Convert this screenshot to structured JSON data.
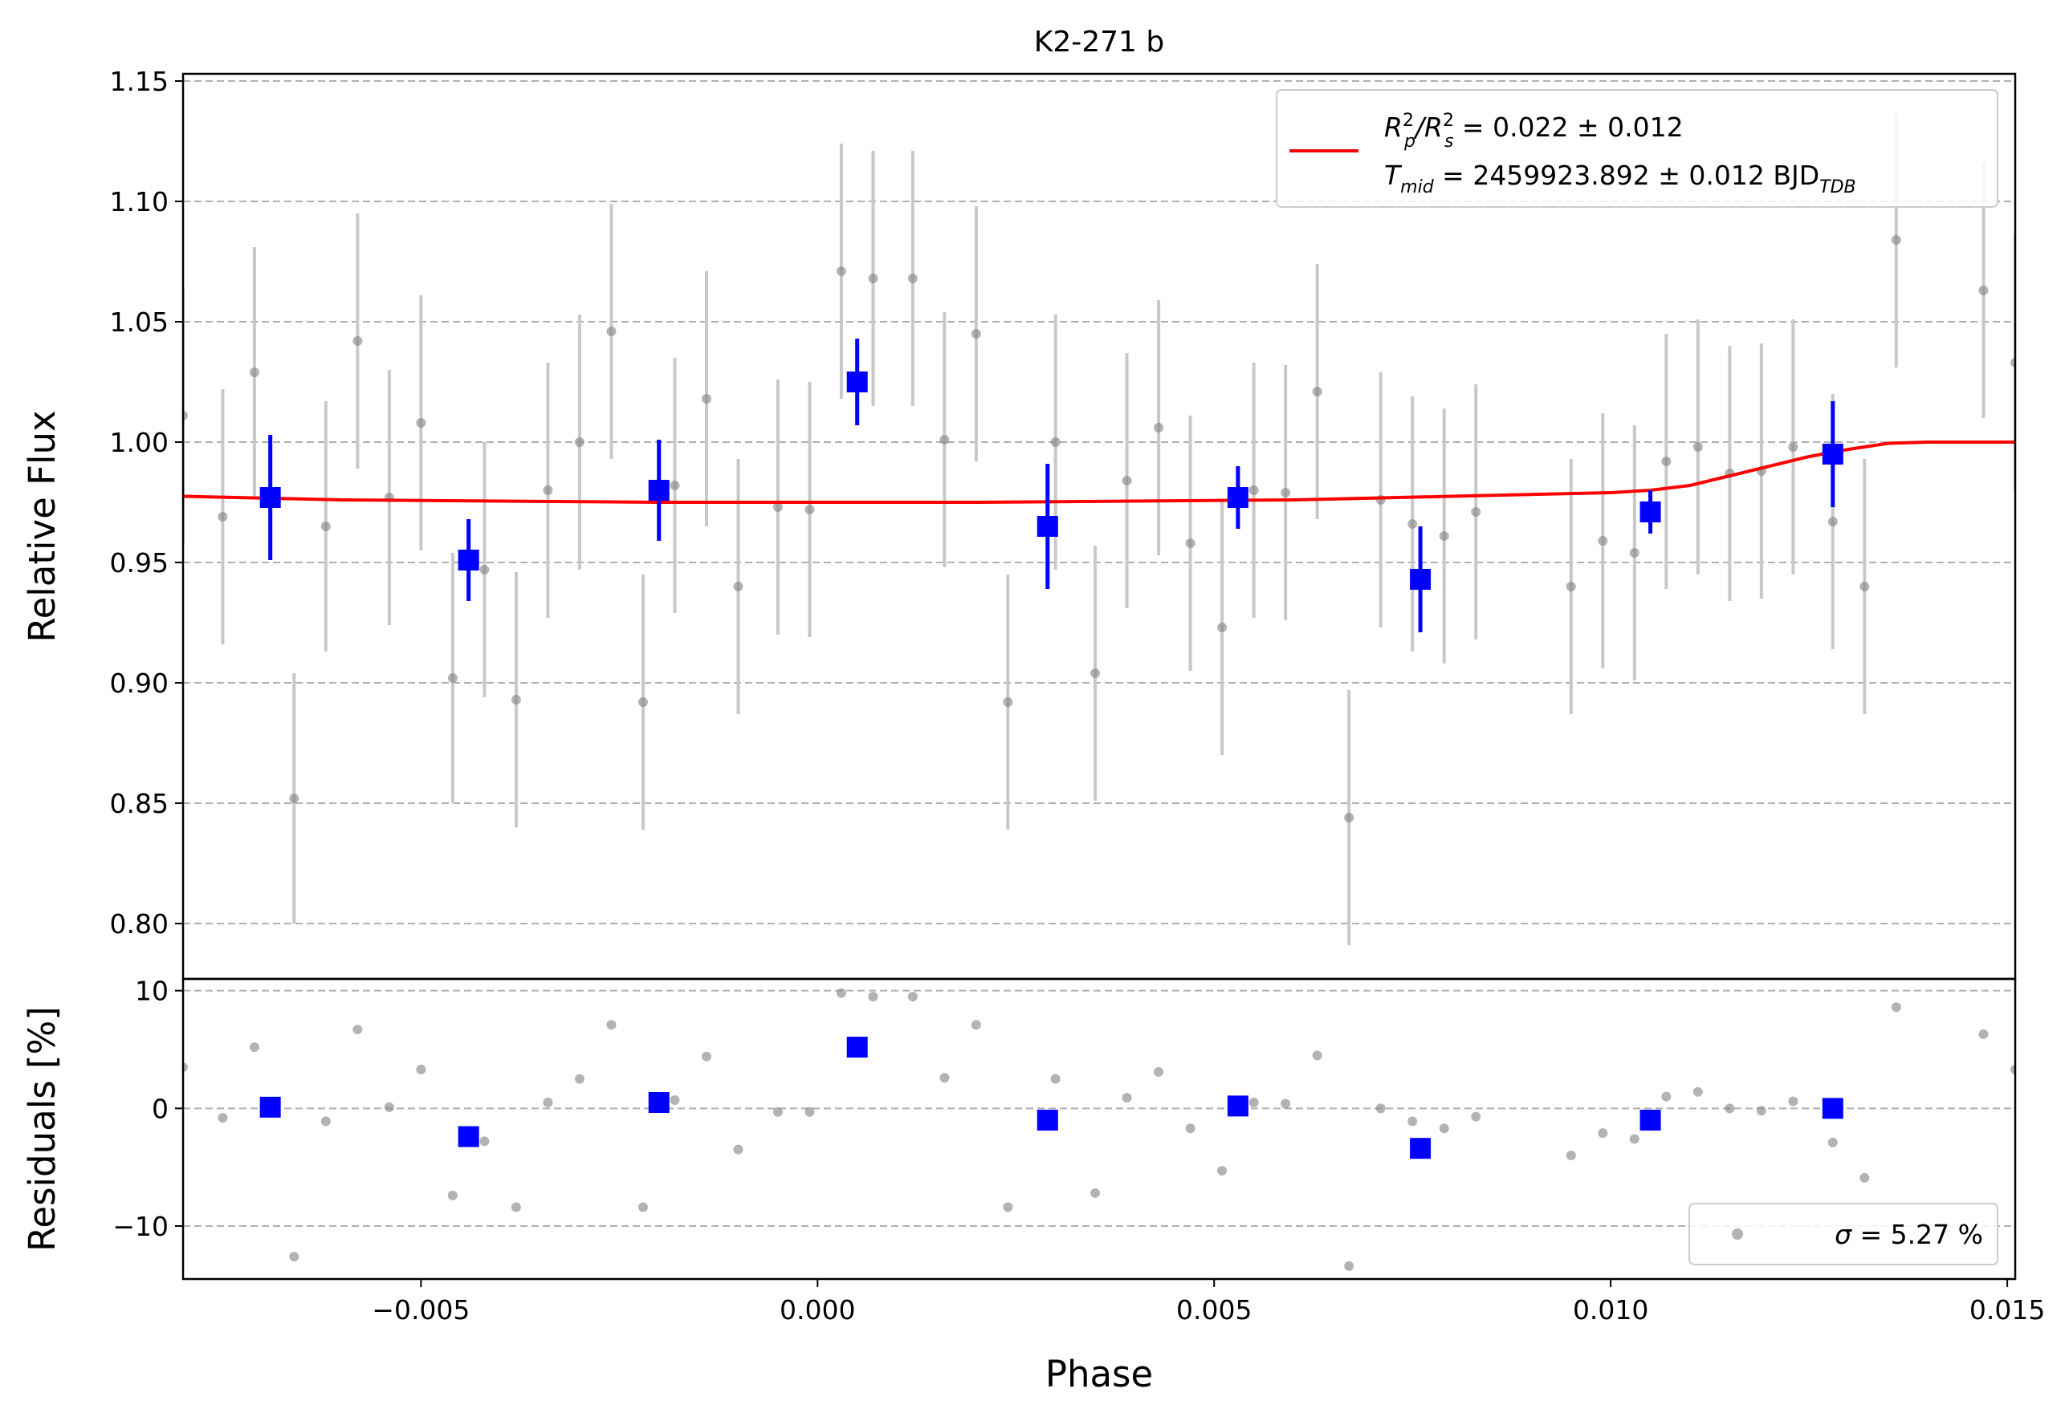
{
  "chart_data": [
    {
      "type": "scatter",
      "panel": "transit-fit",
      "title": "K2-271 b",
      "xlabel": "",
      "ylabel": "Relative Flux",
      "xlim": [
        -0.008,
        0.0151
      ],
      "ylim": [
        0.777,
        1.153
      ],
      "grid": "horizontal-dashed",
      "legend_position": "top-right",
      "yticks": [
        "0.80",
        "0.85",
        "0.90",
        "0.95",
        "1.00",
        "1.05",
        "1.10",
        "1.15"
      ],
      "ytick_values": [
        0.8,
        0.85,
        0.9,
        0.95,
        1.0,
        1.05,
        1.1,
        1.15
      ],
      "legend": {
        "line1_main": "R",
        "line1_sub_p": "p",
        "line1_sup": "2",
        "line1_slash": "/R",
        "line1_sub_s": "s",
        "line1_value": " = 0.022 ± 0.012",
        "line2_main": "T",
        "line2_sub": "mid",
        "line2_value": " = 2459923.892 ± 0.012 BJD",
        "line2_unit_sub": "TDB"
      },
      "colors": {
        "data": "#808080",
        "errorbar": "#c8c8c8",
        "binned": "#0000ff",
        "model": "#ff0000",
        "grid": "#b0b0b0"
      },
      "raw": [
        {
          "x": -0.008,
          "y": 1.011,
          "e": 0.053
        },
        {
          "x": -0.0075,
          "y": 0.969,
          "e": 0.053
        },
        {
          "x": -0.0071,
          "y": 1.029,
          "e": 0.052
        },
        {
          "x": -0.0066,
          "y": 0.852,
          "e": 0.052
        },
        {
          "x": -0.0062,
          "y": 0.965,
          "e": 0.052
        },
        {
          "x": -0.0058,
          "y": 1.042,
          "e": 0.053
        },
        {
          "x": -0.0054,
          "y": 0.977,
          "e": 0.053
        },
        {
          "x": -0.005,
          "y": 1.008,
          "e": 0.053
        },
        {
          "x": -0.0046,
          "y": 0.902,
          "e": 0.052
        },
        {
          "x": -0.0042,
          "y": 0.947,
          "e": 0.053
        },
        {
          "x": -0.0038,
          "y": 0.893,
          "e": 0.053
        },
        {
          "x": -0.0034,
          "y": 0.98,
          "e": 0.053
        },
        {
          "x": -0.003,
          "y": 1.0,
          "e": 0.053
        },
        {
          "x": -0.0026,
          "y": 1.046,
          "e": 0.053
        },
        {
          "x": -0.0022,
          "y": 0.892,
          "e": 0.053
        },
        {
          "x": -0.0018,
          "y": 0.982,
          "e": 0.053
        },
        {
          "x": -0.0014,
          "y": 1.018,
          "e": 0.053
        },
        {
          "x": -0.001,
          "y": 0.94,
          "e": 0.053
        },
        {
          "x": -0.0005,
          "y": 0.973,
          "e": 0.053
        },
        {
          "x": -0.0001,
          "y": 0.972,
          "e": 0.053
        },
        {
          "x": 0.0003,
          "y": 1.071,
          "e": 0.053
        },
        {
          "x": 0.0007,
          "y": 1.068,
          "e": 0.053
        },
        {
          "x": 0.0012,
          "y": 1.068,
          "e": 0.053
        },
        {
          "x": 0.0016,
          "y": 1.001,
          "e": 0.053
        },
        {
          "x": 0.002,
          "y": 1.045,
          "e": 0.053
        },
        {
          "x": 0.0024,
          "y": 0.892,
          "e": 0.053
        },
        {
          "x": 0.003,
          "y": 1.0,
          "e": 0.053
        },
        {
          "x": 0.0035,
          "y": 0.904,
          "e": 0.053
        },
        {
          "x": 0.0039,
          "y": 0.984,
          "e": 0.053
        },
        {
          "x": 0.0043,
          "y": 1.006,
          "e": 0.053
        },
        {
          "x": 0.0047,
          "y": 0.958,
          "e": 0.053
        },
        {
          "x": 0.0051,
          "y": 0.923,
          "e": 0.053
        },
        {
          "x": 0.0055,
          "y": 0.98,
          "e": 0.053
        },
        {
          "x": 0.0059,
          "y": 0.979,
          "e": 0.053
        },
        {
          "x": 0.0063,
          "y": 1.021,
          "e": 0.053
        },
        {
          "x": 0.0067,
          "y": 0.844,
          "e": 0.053
        },
        {
          "x": 0.0071,
          "y": 0.976,
          "e": 0.053
        },
        {
          "x": 0.0075,
          "y": 0.966,
          "e": 0.053
        },
        {
          "x": 0.0079,
          "y": 0.961,
          "e": 0.053
        },
        {
          "x": 0.0083,
          "y": 0.971,
          "e": 0.053
        },
        {
          "x": 0.0095,
          "y": 0.94,
          "e": 0.053
        },
        {
          "x": 0.0099,
          "y": 0.959,
          "e": 0.053
        },
        {
          "x": 0.0103,
          "y": 0.954,
          "e": 0.053
        },
        {
          "x": 0.0107,
          "y": 0.992,
          "e": 0.053
        },
        {
          "x": 0.0111,
          "y": 0.998,
          "e": 0.053
        },
        {
          "x": 0.0115,
          "y": 0.987,
          "e": 0.053
        },
        {
          "x": 0.0119,
          "y": 0.988,
          "e": 0.053
        },
        {
          "x": 0.0123,
          "y": 0.998,
          "e": 0.053
        },
        {
          "x": 0.0128,
          "y": 0.967,
          "e": 0.053
        },
        {
          "x": 0.0132,
          "y": 0.94,
          "e": 0.053
        },
        {
          "x": 0.0136,
          "y": 1.084,
          "e": 0.053
        },
        {
          "x": 0.0147,
          "y": 1.063,
          "e": 0.053
        },
        {
          "x": 0.0151,
          "y": 1.033,
          "e": 0.053
        }
      ],
      "binned": [
        {
          "x": -0.0069,
          "y": 0.977,
          "e": 0.026
        },
        {
          "x": -0.0044,
          "y": 0.951,
          "e": 0.017
        },
        {
          "x": -0.002,
          "y": 0.98,
          "e": 0.021
        },
        {
          "x": 0.0005,
          "y": 1.025,
          "e": 0.018
        },
        {
          "x": 0.0029,
          "y": 0.965,
          "e": 0.026
        },
        {
          "x": 0.0053,
          "y": 0.977,
          "e": 0.013
        },
        {
          "x": 0.0076,
          "y": 0.943,
          "e": 0.022
        },
        {
          "x": 0.0105,
          "y": 0.971,
          "e": 0.009
        },
        {
          "x": 0.0128,
          "y": 0.995,
          "e": 0.022
        }
      ],
      "model": {
        "x": [
          -0.008,
          -0.006,
          -0.004,
          -0.002,
          0.0,
          0.002,
          0.004,
          0.006,
          0.008,
          0.01,
          0.0105,
          0.011,
          0.0115,
          0.012,
          0.0125,
          0.013,
          0.0135,
          0.014,
          0.0151
        ],
        "y": [
          0.9775,
          0.976,
          0.9755,
          0.975,
          0.975,
          0.975,
          0.9755,
          0.976,
          0.9775,
          0.979,
          0.98,
          0.982,
          0.986,
          0.99,
          0.994,
          0.997,
          0.9995,
          1.0,
          1.0
        ]
      }
    },
    {
      "type": "scatter",
      "panel": "residuals",
      "xlabel": "Phase",
      "ylabel": "Residuals [%]",
      "xlim": [
        -0.008,
        0.0151
      ],
      "ylim": [
        -14.5,
        11
      ],
      "grid": "horizontal-dashed",
      "legend_position": "bottom-right",
      "xticks": [
        "−0.005",
        "0.000",
        "0.005",
        "0.010",
        "0.015"
      ],
      "xtick_values": [
        -0.005,
        0.0,
        0.005,
        0.01,
        0.015
      ],
      "yticks": [
        "−10",
        "0",
        "10"
      ],
      "ytick_values": [
        -10,
        0,
        10
      ],
      "legend": {
        "sigma_symbol": "σ",
        "sigma_text": " = 5.27 %"
      },
      "raw": [
        {
          "x": -0.008,
          "y": 3.5
        },
        {
          "x": -0.0075,
          "y": -0.8
        },
        {
          "x": -0.0071,
          "y": 5.2
        },
        {
          "x": -0.0066,
          "y": -12.6
        },
        {
          "x": -0.0062,
          "y": -1.1
        },
        {
          "x": -0.0058,
          "y": 6.7
        },
        {
          "x": -0.0054,
          "y": 0.1
        },
        {
          "x": -0.005,
          "y": 3.3
        },
        {
          "x": -0.0046,
          "y": -7.4
        },
        {
          "x": -0.0042,
          "y": -2.8
        },
        {
          "x": -0.0038,
          "y": -8.4
        },
        {
          "x": -0.0034,
          "y": 0.5
        },
        {
          "x": -0.003,
          "y": 2.5
        },
        {
          "x": -0.0026,
          "y": 7.1
        },
        {
          "x": -0.0022,
          "y": -8.4
        },
        {
          "x": -0.0018,
          "y": 0.7
        },
        {
          "x": -0.0014,
          "y": 4.4
        },
        {
          "x": -0.001,
          "y": -3.5
        },
        {
          "x": -0.0005,
          "y": -0.3
        },
        {
          "x": -0.0001,
          "y": -0.3
        },
        {
          "x": 0.0003,
          "y": 9.8
        },
        {
          "x": 0.0007,
          "y": 9.5
        },
        {
          "x": 0.0012,
          "y": 9.5
        },
        {
          "x": 0.0016,
          "y": 2.6
        },
        {
          "x": 0.002,
          "y": 7.1
        },
        {
          "x": 0.0024,
          "y": -8.4
        },
        {
          "x": 0.003,
          "y": 2.5
        },
        {
          "x": 0.0035,
          "y": -7.2
        },
        {
          "x": 0.0039,
          "y": 0.9
        },
        {
          "x": 0.0043,
          "y": 3.1
        },
        {
          "x": 0.0047,
          "y": -1.7
        },
        {
          "x": 0.0051,
          "y": -5.3
        },
        {
          "x": 0.0055,
          "y": 0.5
        },
        {
          "x": 0.0059,
          "y": 0.4
        },
        {
          "x": 0.0063,
          "y": 4.5
        },
        {
          "x": 0.0067,
          "y": -13.4
        },
        {
          "x": 0.0071,
          "y": 0.0
        },
        {
          "x": 0.0075,
          "y": -1.1
        },
        {
          "x": 0.0079,
          "y": -1.7
        },
        {
          "x": 0.0083,
          "y": -0.7
        },
        {
          "x": 0.0095,
          "y": -4.0
        },
        {
          "x": 0.0099,
          "y": -2.1
        },
        {
          "x": 0.0103,
          "y": -2.6
        },
        {
          "x": 0.0107,
          "y": 1.0
        },
        {
          "x": 0.0111,
          "y": 1.4
        },
        {
          "x": 0.0115,
          "y": 0.0
        },
        {
          "x": 0.0119,
          "y": -0.2
        },
        {
          "x": 0.0123,
          "y": 0.6
        },
        {
          "x": 0.0128,
          "y": -2.9
        },
        {
          "x": 0.0132,
          "y": -5.9
        },
        {
          "x": 0.0136,
          "y": 8.6
        },
        {
          "x": 0.0147,
          "y": 6.3
        },
        {
          "x": 0.0151,
          "y": 3.3
        }
      ],
      "binned": [
        {
          "x": -0.0069,
          "y": 0.1
        },
        {
          "x": -0.0044,
          "y": -2.4
        },
        {
          "x": -0.002,
          "y": 0.5
        },
        {
          "x": 0.0005,
          "y": 5.2
        },
        {
          "x": 0.0029,
          "y": -1.0
        },
        {
          "x": 0.0053,
          "y": 0.2
        },
        {
          "x": 0.0076,
          "y": -3.4
        },
        {
          "x": 0.0105,
          "y": -1.0
        },
        {
          "x": 0.0128,
          "y": 0.0
        }
      ]
    }
  ]
}
